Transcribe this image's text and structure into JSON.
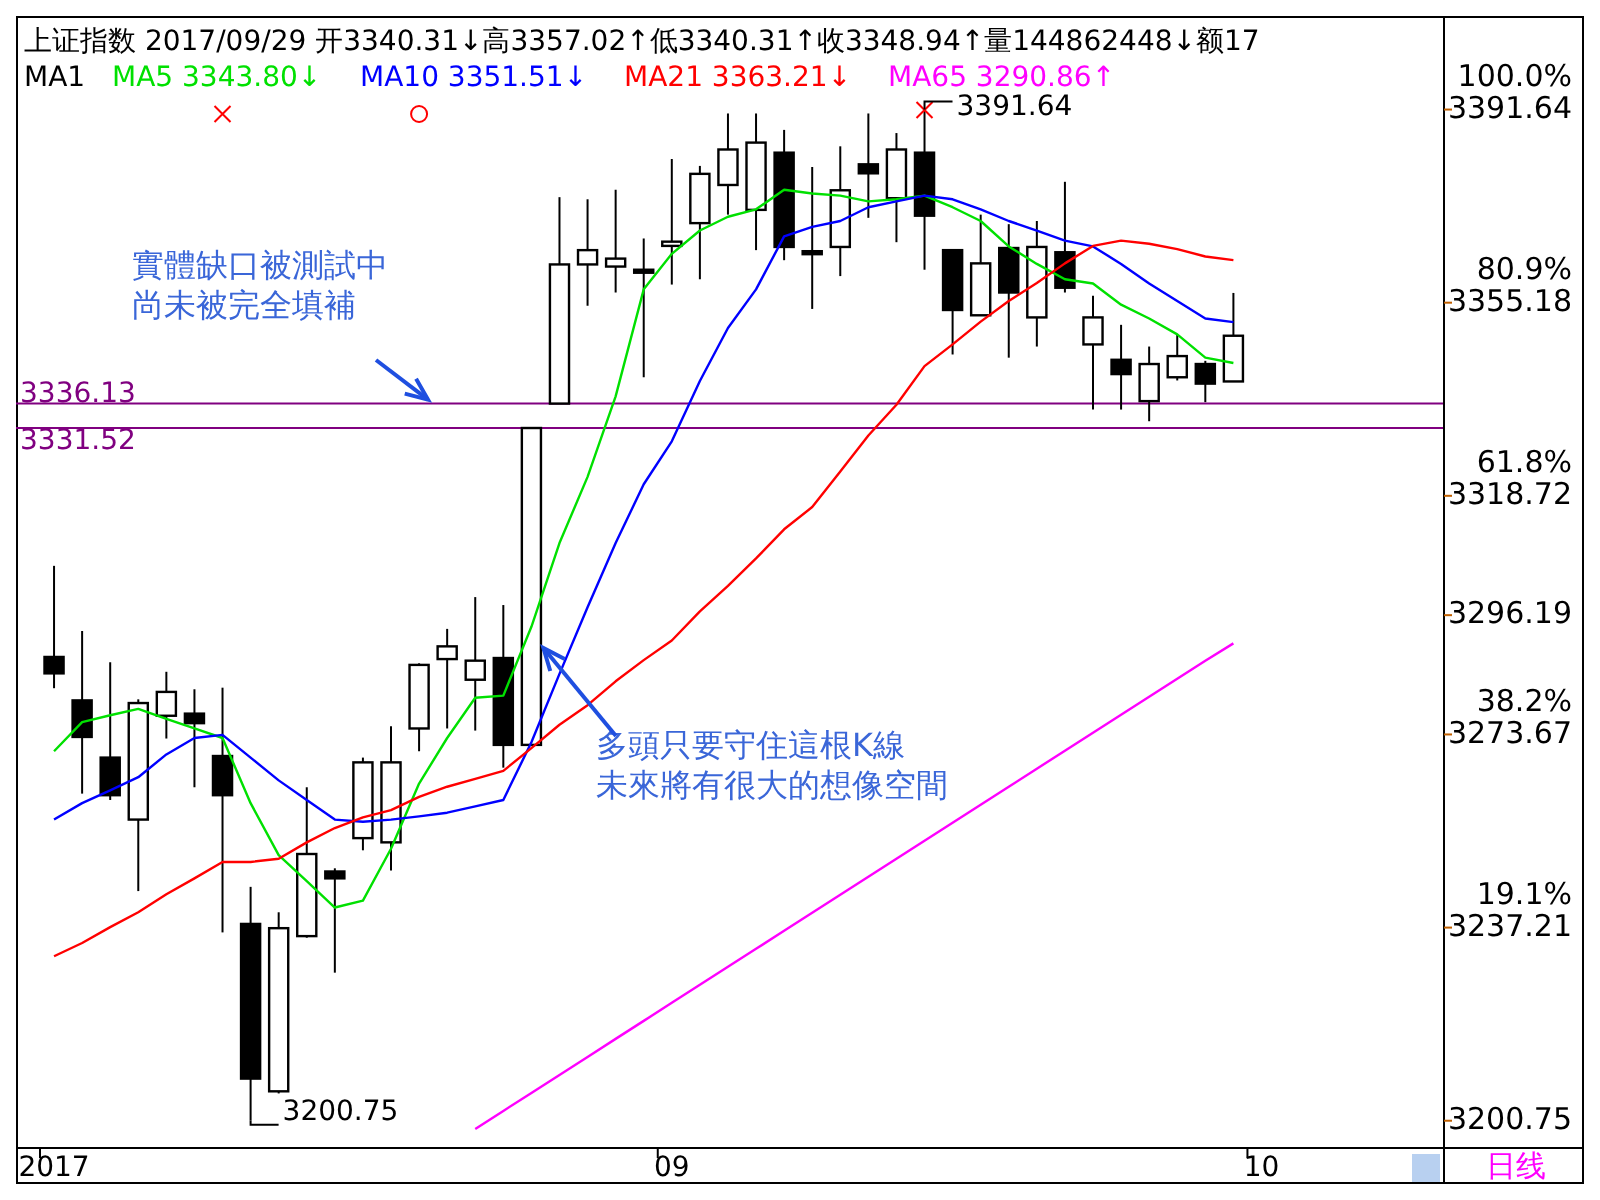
{
  "chart_data": {
    "type": "candlestick",
    "title": "上证指数 2017/09/29 开3340.31↓高3357.02↑低3340.31↑收3348.94↑量144862448↓额17",
    "categories": [
      "2017",
      null,
      null,
      null,
      null,
      null,
      null,
      null,
      null,
      null,
      null,
      null,
      null,
      null,
      null,
      null,
      null,
      null,
      null,
      null,
      null,
      null,
      "09",
      null,
      null,
      null,
      null,
      null,
      null,
      null,
      null,
      null,
      null,
      null,
      null,
      null,
      null,
      null,
      null,
      null,
      null,
      null,
      null,
      "10"
    ],
    "ohlc": [
      [
        3288.3,
        3305.5,
        3282.4,
        3285.2
      ],
      [
        3280.1,
        3293.2,
        3262.5,
        3273.2
      ],
      [
        3269.3,
        3287.3,
        3261.3,
        3262.2
      ],
      [
        3257.6,
        3280.3,
        3244.1,
        3279.6
      ],
      [
        3277.2,
        3285.5,
        3272.9,
        3281.7
      ],
      [
        3277.6,
        3282.2,
        3263.7,
        3275.8
      ],
      [
        3269.6,
        3282.5,
        3236.3,
        3262.2
      ],
      [
        3237.9,
        3244.9,
        3200.75,
        3208.7
      ],
      [
        3206.3,
        3240.1,
        3205.9,
        3237.1
      ],
      [
        3235.6,
        3263.7,
        3235.3,
        3251.1
      ],
      [
        3247.8,
        3248.4,
        3228.7,
        3246.5
      ],
      [
        3254.1,
        3269.3,
        3251.8,
        3268.4
      ],
      [
        3253.3,
        3275.2,
        3248.0,
        3268.4
      ],
      [
        3274.8,
        3287.1,
        3270.5,
        3286.8
      ],
      [
        3287.9,
        3293.6,
        3274.8,
        3290.3
      ],
      [
        3284.0,
        3299.6,
        3274.4,
        3287.6
      ],
      [
        3288.1,
        3298.1,
        3267.4,
        3271.7
      ],
      [
        3271.7,
        3331.52,
        3271.7,
        3331.52
      ],
      [
        3336.13,
        3375.1,
        3336.13,
        3362.4
      ],
      [
        3362.4,
        3374.7,
        3354.6,
        3365.1
      ],
      [
        3362.0,
        3376.5,
        3357.1,
        3363.5
      ],
      [
        3361.4,
        3367.3,
        3341.1,
        3361.0
      ],
      [
        3365.9,
        3382.3,
        3358.6,
        3366.7
      ],
      [
        3370.2,
        3381.0,
        3359.6,
        3379.5
      ],
      [
        3377.4,
        3390.9,
        3371.8,
        3384.1
      ],
      [
        3372.7,
        3390.9,
        3365.1,
        3385.4
      ],
      [
        3383.5,
        3387.8,
        3363.2,
        3365.7
      ],
      [
        3364.9,
        3380.8,
        3354.0,
        3364.5
      ],
      [
        3365.7,
        3384.7,
        3360.2,
        3376.4
      ],
      [
        3381.3,
        3390.9,
        3371.2,
        3379.6
      ],
      [
        3374.9,
        3387.2,
        3366.6,
        3384.1
      ],
      [
        3383.5,
        3391.64,
        3361.4,
        3371.6
      ],
      [
        3365.1,
        3365.1,
        3345.4,
        3353.8
      ],
      [
        3352.8,
        3371.8,
        3352.8,
        3362.6
      ],
      [
        3365.5,
        3370.0,
        3344.8,
        3357.1
      ],
      [
        3352.4,
        3370.6,
        3346.9,
        3365.7
      ],
      [
        3364.7,
        3378.0,
        3357.1,
        3358.0
      ],
      [
        3347.3,
        3356.5,
        3335.0,
        3352.4
      ],
      [
        3344.4,
        3351.0,
        3335.0,
        3341.7
      ],
      [
        3336.6,
        3346.9,
        3332.8,
        3343.6
      ],
      [
        3341.1,
        3349.1,
        3340.5,
        3345.1
      ],
      [
        3343.6,
        3344.2,
        3336.4,
        3339.9
      ],
      [
        3340.31,
        3357.02,
        3340.31,
        3348.94
      ],
      null
    ],
    "series": [
      {
        "type": "line",
        "name": "MA5 3343.80↓",
        "color": "#00e000",
        "values": [
          3270.5,
          3276.0,
          3277.3,
          3278.5,
          3276.6,
          3274.8,
          3273.0,
          3260.7,
          3250.9,
          3246.0,
          3241.0,
          3242.3,
          3252.1,
          3264.4,
          3273.0,
          3280.6,
          3281.0,
          3294.0,
          3309.8,
          3322.3,
          3337.5,
          3357.7,
          3364.4,
          3368.8,
          3371.4,
          3372.8,
          3376.5,
          3375.8,
          3375.4,
          3374.3,
          3374.7,
          3375.4,
          3373.2,
          3370.6,
          3365.8,
          3362.5,
          3359.6,
          3358.8,
          3354.8,
          3352.2,
          3349.2,
          3344.8,
          3343.8,
          null
        ]
      },
      {
        "type": "line",
        "name": "MA10 3351.51↓",
        "color": "#0000ff",
        "values": [
          3257.6,
          3260.7,
          3263.1,
          3265.6,
          3269.9,
          3273.0,
          3273.6,
          3269.3,
          3265.0,
          3261.3,
          3257.6,
          3257.2,
          3257.6,
          3258.2,
          3258.9,
          3260.1,
          3261.3,
          3272.2,
          3285.1,
          3297.7,
          3309.8,
          3320.9,
          3329.0,
          3340.4,
          3350.4,
          3357.7,
          3367.7,
          3369.5,
          3370.6,
          3373.2,
          3374.3,
          3375.4,
          3374.7,
          3372.8,
          3370.6,
          3368.8,
          3366.9,
          3365.8,
          3362.5,
          3358.8,
          3355.5,
          3352.2,
          3351.51,
          null
        ]
      },
      {
        "type": "line",
        "name": "MA21 3363.21↓",
        "color": "#ff0000",
        "values": [
          3231.8,
          3234.3,
          3237.3,
          3240.1,
          3243.5,
          3246.5,
          3249.6,
          3249.6,
          3250.2,
          3253.3,
          3256.0,
          3258.0,
          3259.4,
          3261.9,
          3263.8,
          3265.3,
          3266.8,
          3271.1,
          3275.5,
          3279.2,
          3283.7,
          3287.7,
          3291.4,
          3296.9,
          3301.7,
          3306.9,
          3312.4,
          3316.6,
          3323.3,
          3330.1,
          3335.9,
          3343.2,
          3347.3,
          3351.6,
          3355.5,
          3358.9,
          3362.6,
          3365.9,
          3366.9,
          3366.3,
          3365.3,
          3363.9,
          3363.21,
          null
        ]
      },
      {
        "type": "line",
        "name": "MA65 3290.86↑",
        "color": "#ff00ff",
        "values": [
          null,
          null,
          null,
          null,
          null,
          null,
          null,
          null,
          null,
          null,
          null,
          null,
          null,
          null,
          null,
          3199.2,
          3202.6,
          3206.0,
          3209.4,
          3212.8,
          3216.2,
          3219.6,
          3223.0,
          3226.4,
          3229.8,
          3233.2,
          3236.6,
          3240.0,
          3243.4,
          3246.8,
          3250.2,
          3253.6,
          3257.0,
          3260.4,
          3263.8,
          3267.2,
          3270.6,
          3274.0,
          3277.4,
          3280.8,
          3284.2,
          3287.6,
          3290.86,
          null
        ]
      }
    ],
    "ylim": [
      3195.6,
      3409.3
    ],
    "yticks": [
      {
        "value": 3391.64,
        "label": "100.0%\n3391.64"
      },
      {
        "value": 3355.18,
        "label": "80.9%\n3355.18"
      },
      {
        "value": 3318.72,
        "label": "61.8%\n3318.72"
      },
      {
        "value": 3296.19,
        "label": "3296.19"
      },
      {
        "value": 3273.67,
        "label": "38.2%\n3273.67"
      },
      {
        "value": 3237.21,
        "label": "19.1%\n3237.21"
      },
      {
        "value": 3200.75,
        "label": "3200.75"
      }
    ],
    "legend": "top left",
    "ref_lines": [
      {
        "axis": "y",
        "value": 3336.13,
        "label": "3336.13",
        "color": "#800080"
      },
      {
        "axis": "y",
        "value": 3331.52,
        "label": "3331.52",
        "color": "#800080"
      }
    ],
    "annotations": [
      "實體缺口被測試中尚未被完全填補",
      "多頭只要守住這根K線未來將有很大的想像空間",
      "3391.64",
      "3200.75",
      "MA1",
      "日线"
    ]
  }
}
